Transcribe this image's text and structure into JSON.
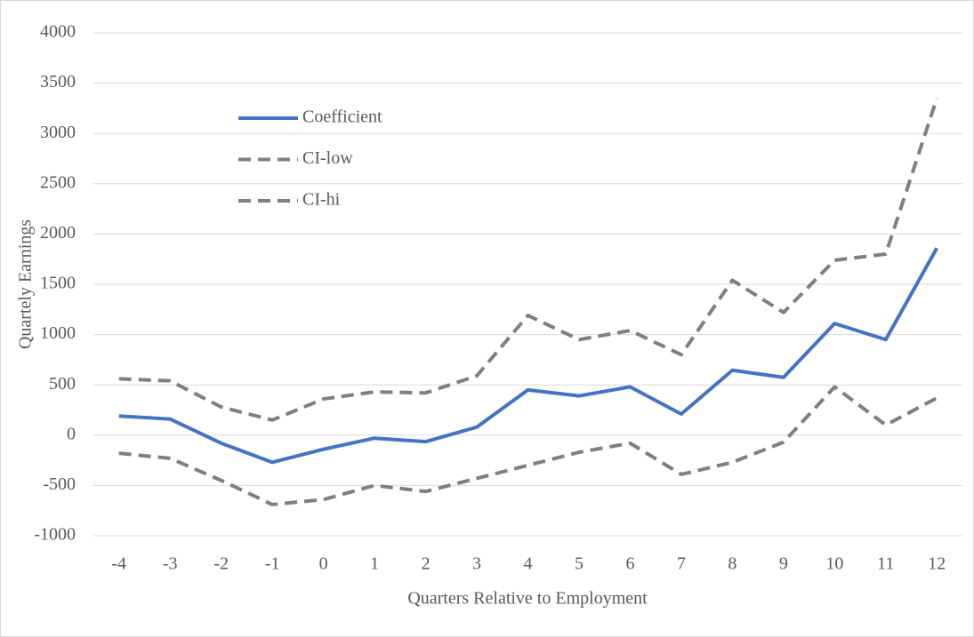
{
  "chart_data": {
    "type": "line",
    "x_label": "Quarters Relative to Employment",
    "y_label": "Quartely Earnings",
    "categories": [
      "-4",
      "-3",
      "-2",
      "-1",
      "0",
      "1",
      "2",
      "3",
      "4",
      "5",
      "6",
      "7",
      "8",
      "9",
      "10",
      "11",
      "12"
    ],
    "series": [
      {
        "name": "Coefficient",
        "color": "#4472c4",
        "dashed": false,
        "values": [
          190,
          160,
          -80,
          -270,
          -140,
          -30,
          -65,
          80,
          450,
          390,
          480,
          210,
          645,
          575,
          1110,
          950,
          1860
        ]
      },
      {
        "name": "CI-low",
        "color": "#7f7f7f",
        "dashed": true,
        "values": [
          -180,
          -230,
          -450,
          -690,
          -640,
          -500,
          -560,
          -430,
          -300,
          -170,
          -80,
          -390,
          -270,
          -70,
          480,
          100,
          370
        ]
      },
      {
        "name": "CI-hi",
        "color": "#7f7f7f",
        "dashed": true,
        "values": [
          560,
          540,
          280,
          150,
          360,
          430,
          420,
          590,
          1190,
          950,
          1040,
          800,
          1540,
          1220,
          1740,
          1800,
          3350
        ]
      }
    ],
    "ylim": [
      -1000,
      4000
    ],
    "yticks": [
      -1000,
      -500,
      0,
      500,
      1000,
      1500,
      2000,
      2500,
      3000,
      3500,
      4000
    ],
    "grid": true,
    "legend": "upper-left"
  }
}
